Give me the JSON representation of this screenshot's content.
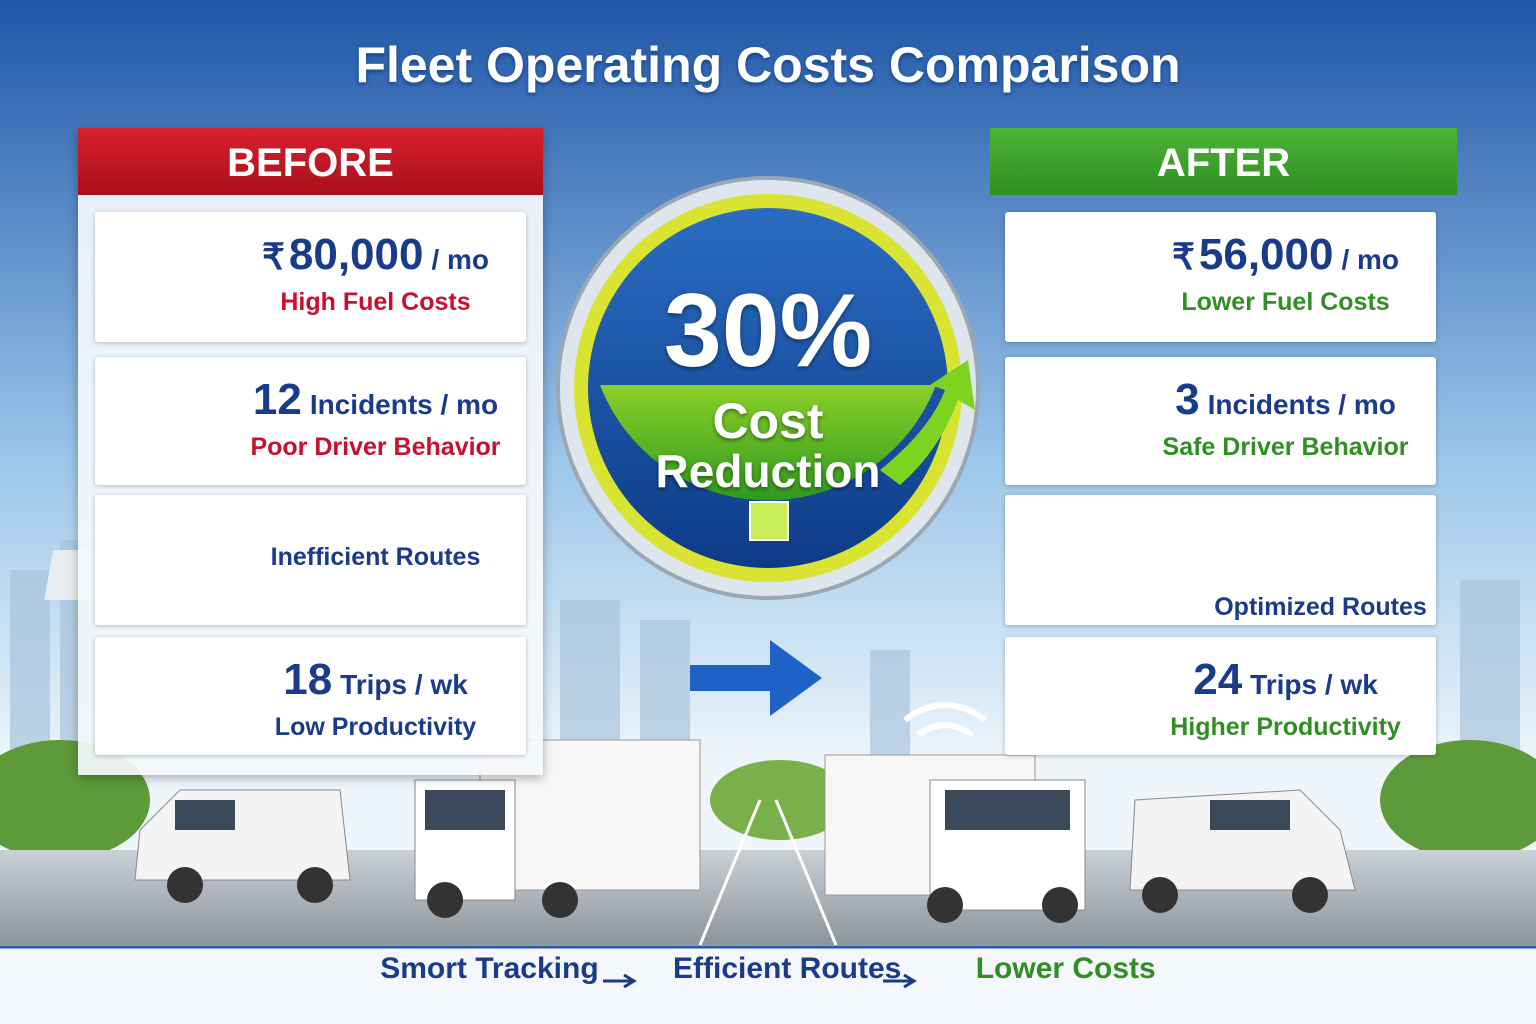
{
  "header": {
    "title": "Fleet Operating Costs Comparison"
  },
  "before": {
    "heading": "BEFORE",
    "items": [
      {
        "currency": "₹",
        "amount": "80,000",
        "unit": "/ mo",
        "label": "High Fuel Costs"
      },
      {
        "amount": "12",
        "unit": "Incidents / mo",
        "label": "Poor Driver Behavior"
      },
      {
        "label": "Inefficient Routes"
      },
      {
        "amount": "18",
        "unit": "Trips / wk",
        "label": "Low Productivity"
      }
    ]
  },
  "after": {
    "heading": "AFTER",
    "items": [
      {
        "currency": "₹",
        "amount": "56,000",
        "unit": "/ mo",
        "label": "Lower Fuel Costs"
      },
      {
        "amount": "3",
        "unit": "Incidents / mo",
        "label": "Safe Driver Behavior"
      },
      {
        "label": "Optimized Routes"
      },
      {
        "amount": "24",
        "unit": "Trips / wk",
        "label": "Higher Productivity"
      }
    ]
  },
  "badge": {
    "percent": "30%",
    "line1": "Cost",
    "line2": "Reduction"
  },
  "footer": {
    "steps": [
      "Smort Tracking",
      "Efficient Routes",
      "Lower Costs"
    ]
  }
}
